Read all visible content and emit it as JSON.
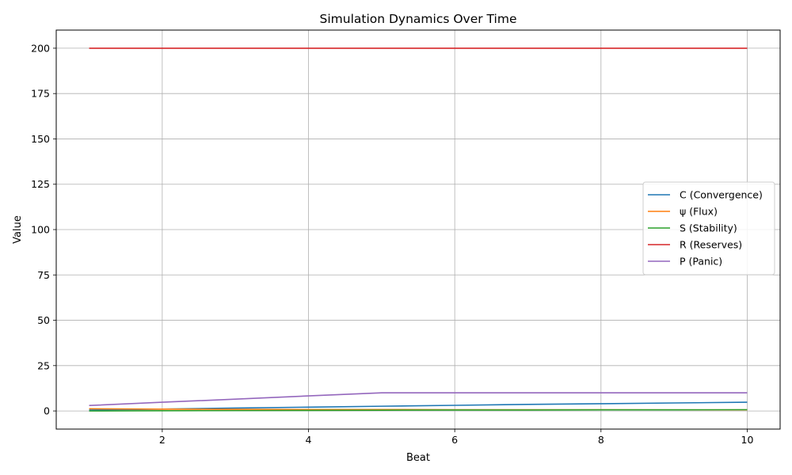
{
  "chart_data": {
    "type": "line",
    "title": "Simulation Dynamics Over Time",
    "xlabel": "Beat",
    "ylabel": "Value",
    "xlim": [
      0.55,
      10.45
    ],
    "ylim": [
      -10,
      210
    ],
    "xticks": [
      2,
      4,
      6,
      8,
      10
    ],
    "yticks": [
      0,
      25,
      50,
      75,
      100,
      125,
      150,
      175,
      200
    ],
    "grid": true,
    "legend_position": "center-right",
    "x": [
      1,
      2,
      3,
      4,
      5,
      6,
      7,
      8,
      9,
      10
    ],
    "series": [
      {
        "name": "C (Convergence)",
        "color": "#1f77b4",
        "values": [
          0.5,
          1.0,
          1.6,
          2.1,
          2.6,
          3.1,
          3.6,
          4.0,
          4.4,
          4.8
        ]
      },
      {
        "name": "ψ (Flux)",
        "color": "#ff7f0e",
        "values": [
          1.2,
          1.0,
          0.9,
          0.8,
          0.8,
          0.7,
          0.7,
          0.7,
          0.6,
          0.6
        ]
      },
      {
        "name": "S (Stability)",
        "color": "#2ca02c",
        "values": [
          0.0,
          0.1,
          0.2,
          0.3,
          0.4,
          0.5,
          0.5,
          0.6,
          0.6,
          0.7
        ]
      },
      {
        "name": "R (Reserves)",
        "color": "#d62728",
        "values": [
          200,
          200,
          200,
          200,
          200,
          200,
          200,
          200,
          200,
          200
        ]
      },
      {
        "name": "P (Panic)",
        "color": "#9467bd",
        "values": [
          3.0,
          4.8,
          6.5,
          8.3,
          10.0,
          10.0,
          10.0,
          10.0,
          10.0,
          10.0
        ]
      }
    ]
  }
}
